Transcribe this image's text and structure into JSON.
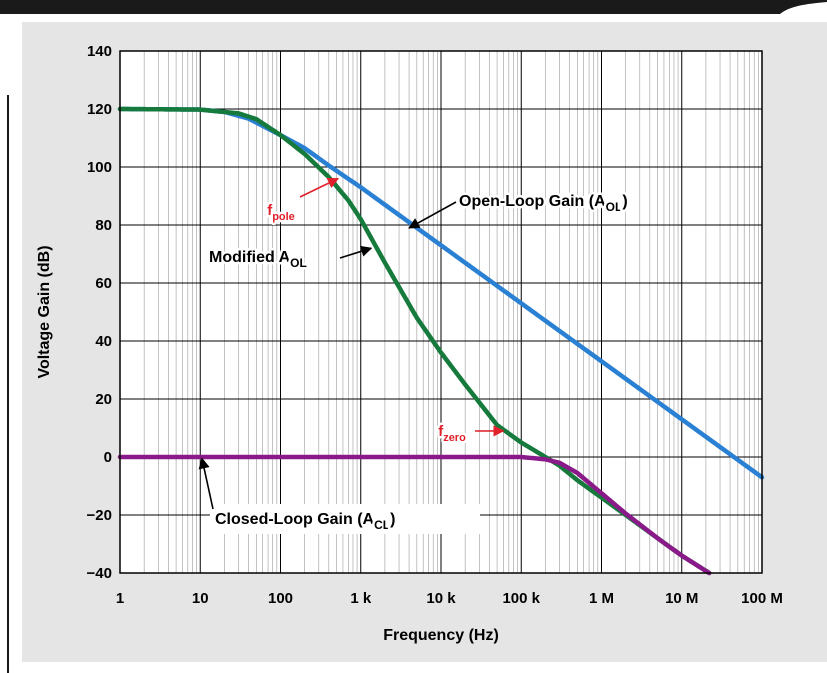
{
  "chart_data": {
    "type": "line",
    "x_scale": "log",
    "xlabel": "Frequency (Hz)",
    "ylabel": "Voltage Gain (dB)",
    "xlim": [
      1,
      100000000
    ],
    "ylim": [
      -40,
      140
    ],
    "x_ticks": [
      {
        "value": 1,
        "label": "1"
      },
      {
        "value": 10,
        "label": "10"
      },
      {
        "value": 100,
        "label": "100"
      },
      {
        "value": 1000,
        "label": "1 k"
      },
      {
        "value": 10000,
        "label": "10 k"
      },
      {
        "value": 100000,
        "label": "100 k"
      },
      {
        "value": 1000000,
        "label": "1 M"
      },
      {
        "value": 10000000,
        "label": "10 M"
      },
      {
        "value": 100000000,
        "label": "100 M"
      }
    ],
    "y_ticks": [
      {
        "value": 140,
        "label": "140"
      },
      {
        "value": 120,
        "label": "120"
      },
      {
        "value": 100,
        "label": "100"
      },
      {
        "value": 80,
        "label": "80"
      },
      {
        "value": 60,
        "label": "60"
      },
      {
        "value": 40,
        "label": "40"
      },
      {
        "value": 20,
        "label": "20"
      },
      {
        "value": 0,
        "label": "0"
      },
      {
        "value": -20,
        "label": "−20"
      },
      {
        "value": -40,
        "label": "−40"
      }
    ],
    "grid": true,
    "series": [
      {
        "id": "aol",
        "color": "#2a80d2",
        "x": [
          1,
          10,
          20,
          40,
          100,
          200,
          400,
          1000,
          10000,
          100000,
          1000000,
          10000000,
          100000000
        ],
        "y": [
          120,
          119.8,
          119,
          116.7,
          111,
          106.5,
          100.5,
          93,
          73,
          53,
          33,
          13,
          -7
        ]
      },
      {
        "id": "modified_aol",
        "color": "#157a3c",
        "x": [
          1,
          10,
          30,
          50,
          100,
          200,
          400,
          700,
          1000,
          2000,
          5000,
          10000,
          20000,
          50000,
          100000,
          200000,
          300000,
          500000,
          1000000,
          2000000,
          5000000,
          10000000,
          22000000
        ],
        "y": [
          120,
          119.8,
          118.5,
          116.5,
          111,
          104.5,
          96.5,
          88.5,
          82,
          67,
          48,
          36,
          25,
          11,
          5,
          0,
          -3,
          -8,
          -14,
          -20,
          -28,
          -34,
          -40
        ]
      },
      {
        "id": "acl",
        "color": "#8a1a8a",
        "x": [
          1,
          10,
          100,
          1000,
          10000,
          100000,
          200000,
          300000,
          500000,
          1000000,
          2000000,
          5000000,
          10000000,
          22000000
        ],
        "y": [
          0,
          0,
          0,
          0,
          0,
          0,
          -0.8,
          -2,
          -5.5,
          -12.5,
          -19.5,
          -28,
          -34,
          -40
        ]
      }
    ],
    "annotations": [
      {
        "id": "aol-label",
        "text": "Open-Loop Gain (A",
        "sub": "OL",
        "tail": ")",
        "color": "#000000",
        "points_to_x": 4000,
        "points_to_y": 79
      },
      {
        "id": "modified-label",
        "text": "Modified A",
        "sub": "OL",
        "tail": "",
        "color": "#000000",
        "points_to_x": 1350,
        "points_to_y": 72
      },
      {
        "id": "fpole-label",
        "text": "f",
        "sub": "pole",
        "tail": "",
        "color": "#e0202a",
        "points_to_x": 520,
        "points_to_y": 96
      },
      {
        "id": "fzero-label",
        "text": "f",
        "sub": "zero",
        "tail": "",
        "color": "#e0202a",
        "points_to_x": 60000,
        "points_to_y": 9
      },
      {
        "id": "acl-label",
        "text": "Closed-Loop Gain (A",
        "sub": "CL",
        "tail": ")",
        "color": "#000000",
        "points_to_x": 10.5,
        "points_to_y": -0.5
      }
    ]
  }
}
